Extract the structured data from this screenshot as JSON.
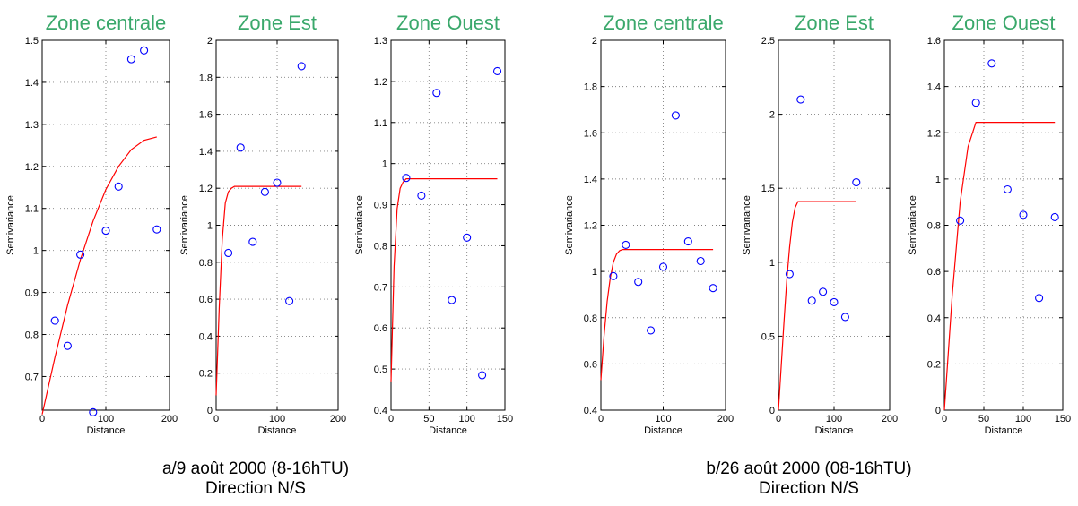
{
  "colors": {
    "title": "#3aa86b",
    "observed_points": "#0000ff",
    "fitted_model": "#ff0000",
    "grid": "#808080",
    "axes": "#000000"
  },
  "captions": [
    {
      "line1": "a/9 août 2000 (8-16hTU)",
      "line2": "Direction N/S"
    },
    {
      "line1": "b/26 août 2000 (08-16hTU)",
      "line2": "Direction N/S"
    }
  ],
  "chart_data": [
    {
      "type": "scatter",
      "title": "Zone centrale",
      "xlabel": "Distance",
      "ylabel": "Semivariance",
      "xlim": [
        0,
        200
      ],
      "ylim": [
        0.62,
        1.5
      ],
      "xticks": [
        0,
        100,
        200
      ],
      "yticks": [
        0.7,
        0.8,
        0.9,
        1,
        1.1,
        1.2,
        1.3,
        1.4,
        1.5
      ],
      "ytick_labels": [
        "0.7",
        "0.8",
        "0.9",
        "1",
        "1.1",
        "1.2",
        "1.3",
        "1.4",
        "1.5"
      ],
      "grid": true,
      "series": [
        {
          "kind": "points",
          "x": [
            20,
            40,
            60,
            80,
            100,
            120,
            140,
            160,
            180
          ],
          "y": [
            0.833,
            0.773,
            0.99,
            0.615,
            1.047,
            1.152,
            1.455,
            1.476,
            1.05
          ]
        },
        {
          "kind": "model",
          "x": [
            0,
            20,
            40,
            60,
            80,
            100,
            120,
            140,
            160,
            180
          ],
          "y": [
            0.61,
            0.745,
            0.87,
            0.978,
            1.07,
            1.145,
            1.2,
            1.24,
            1.262,
            1.27
          ]
        }
      ]
    },
    {
      "type": "scatter",
      "title": "Zone Est",
      "xlabel": "Distance",
      "ylabel": "Semivariance",
      "xlim": [
        0,
        200
      ],
      "ylim": [
        0,
        2
      ],
      "xticks": [
        0,
        100,
        200
      ],
      "yticks": [
        0,
        0.2,
        0.4,
        0.6,
        0.8,
        1,
        1.2,
        1.4,
        1.6,
        1.8,
        2
      ],
      "ytick_labels": [
        "0",
        "0.2",
        "0.4",
        "0.6",
        "0.8",
        "1",
        "1.2",
        "1.4",
        "1.6",
        "1.8",
        "2"
      ],
      "grid": true,
      "series": [
        {
          "kind": "points",
          "x": [
            20,
            40,
            60,
            80,
            100,
            120,
            140
          ],
          "y": [
            0.85,
            1.42,
            0.91,
            1.18,
            1.23,
            0.59,
            1.86
          ]
        },
        {
          "kind": "model",
          "x": [
            0,
            5,
            10,
            15,
            20,
            25,
            30,
            140
          ],
          "y": [
            0.08,
            0.55,
            0.92,
            1.12,
            1.18,
            1.2,
            1.21,
            1.21
          ]
        }
      ]
    },
    {
      "type": "scatter",
      "title": "Zone Ouest",
      "xlabel": "Distance",
      "ylabel": "Semivariance",
      "xlim": [
        0,
        150
      ],
      "ylim": [
        0.4,
        1.3
      ],
      "xticks": [
        0,
        50,
        100,
        150
      ],
      "yticks": [
        0.4,
        0.5,
        0.6,
        0.7,
        0.8,
        0.9,
        1,
        1.1,
        1.2,
        1.3
      ],
      "ytick_labels": [
        "0.4",
        "0.5",
        "0.6",
        "0.7",
        "0.8",
        "0.9",
        "1",
        "1.1",
        "1.2",
        "1.3"
      ],
      "grid": true,
      "series": [
        {
          "kind": "points",
          "x": [
            20,
            40,
            60,
            80,
            100,
            120,
            140
          ],
          "y": [
            0.965,
            0.922,
            1.172,
            0.668,
            0.82,
            0.485,
            1.225
          ]
        },
        {
          "kind": "model",
          "x": [
            0,
            4,
            8,
            12,
            16,
            20,
            140
          ],
          "y": [
            0.47,
            0.75,
            0.89,
            0.94,
            0.955,
            0.963,
            0.963
          ]
        }
      ]
    },
    {
      "type": "scatter",
      "title": "Zone centrale",
      "xlabel": "Distance",
      "ylabel": "Semivariance",
      "xlim": [
        0,
        200
      ],
      "ylim": [
        0.4,
        2
      ],
      "xticks": [
        0,
        100,
        200
      ],
      "yticks": [
        0.4,
        0.6,
        0.8,
        1,
        1.2,
        1.4,
        1.6,
        1.8,
        2
      ],
      "ytick_labels": [
        "0.4",
        "0.6",
        "0.8",
        "1",
        "1.2",
        "1.4",
        "1.6",
        "1.8",
        "2"
      ],
      "grid": true,
      "series": [
        {
          "kind": "points",
          "x": [
            20,
            40,
            60,
            80,
            100,
            120,
            140,
            160,
            180
          ],
          "y": [
            0.98,
            1.115,
            0.955,
            0.745,
            1.02,
            1.675,
            1.13,
            1.045,
            0.928
          ]
        },
        {
          "kind": "model",
          "x": [
            0,
            5,
            10,
            15,
            20,
            25,
            30,
            35,
            180
          ],
          "y": [
            0.53,
            0.72,
            0.87,
            0.97,
            1.04,
            1.075,
            1.09,
            1.095,
            1.095
          ]
        }
      ]
    },
    {
      "type": "scatter",
      "title": "Zone Est",
      "xlabel": "Distance",
      "ylabel": "Semivariance",
      "xlim": [
        0,
        200
      ],
      "ylim": [
        0,
        2.5
      ],
      "xticks": [
        0,
        100,
        200
      ],
      "yticks": [
        0,
        0.5,
        1,
        1.5,
        2,
        2.5
      ],
      "ytick_labels": [
        "0",
        "0.5",
        "1",
        "1.5",
        "2",
        "2.5"
      ],
      "grid": true,
      "series": [
        {
          "kind": "points",
          "x": [
            20,
            40,
            60,
            80,
            100,
            120,
            140
          ],
          "y": [
            0.92,
            2.1,
            0.74,
            0.8,
            0.73,
            0.63,
            1.54
          ]
        },
        {
          "kind": "model",
          "x": [
            0,
            5,
            10,
            15,
            20,
            25,
            30,
            35,
            140
          ],
          "y": [
            0.0,
            0.3,
            0.6,
            0.88,
            1.1,
            1.27,
            1.37,
            1.41,
            1.41
          ]
        }
      ]
    },
    {
      "type": "scatter",
      "title": "Zone Ouest",
      "xlabel": "Distance",
      "ylabel": "Semivariance",
      "xlim": [
        0,
        150
      ],
      "ylim": [
        0,
        1.6
      ],
      "xticks": [
        0,
        50,
        100,
        150
      ],
      "yticks": [
        0,
        0.2,
        0.4,
        0.6,
        0.8,
        1,
        1.2,
        1.4,
        1.6
      ],
      "ytick_labels": [
        "0",
        "0.2",
        "0.4",
        "0.6",
        "0.8",
        "1",
        "1.2",
        "1.4",
        "1.6"
      ],
      "grid": true,
      "series": [
        {
          "kind": "points",
          "x": [
            20,
            40,
            60,
            80,
            100,
            120,
            140
          ],
          "y": [
            0.82,
            1.33,
            1.5,
            0.955,
            0.845,
            0.485,
            0.835
          ]
        },
        {
          "kind": "model",
          "x": [
            0,
            10,
            20,
            30,
            40,
            140
          ],
          "y": [
            0.0,
            0.5,
            0.9,
            1.14,
            1.245,
            1.245
          ]
        }
      ]
    }
  ]
}
